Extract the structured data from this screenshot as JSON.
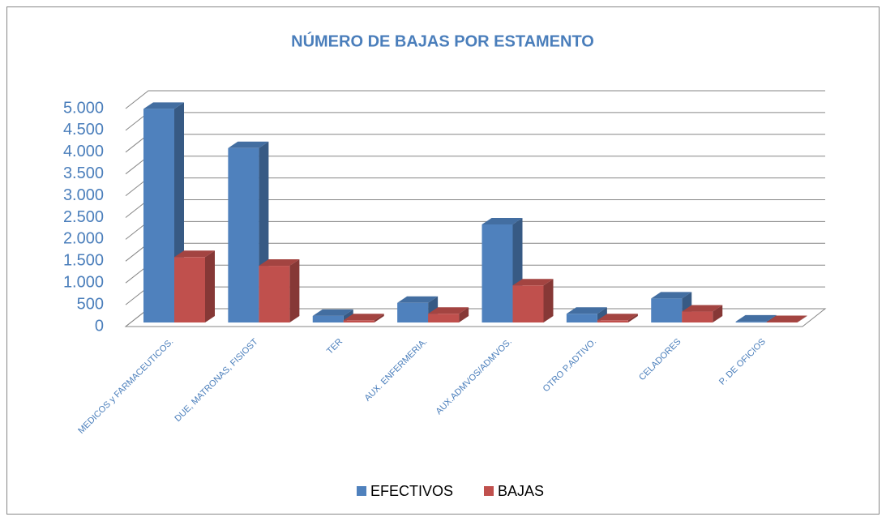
{
  "chart_data": {
    "type": "bar3d",
    "title": "NÚMERO DE BAJAS POR ESTAMENTO",
    "categories": [
      "MEDICOS y FARMACEUTICOS.",
      "DUE, MATRONAS, FISIOST",
      "TER",
      "AUX. ENFERMERIA.",
      "AUX.ADMVOS/ADMVOS.",
      "OTRO P.ADTIVO.",
      "CELADORES",
      "P. DE OFICIOS"
    ],
    "series": [
      {
        "name": "EFECTIVOS",
        "color": "#4f81bd",
        "values": [
          4900,
          4000,
          150,
          450,
          2250,
          200,
          550,
          20
        ]
      },
      {
        "name": "BAJAS",
        "color": "#c0504d",
        "values": [
          1500,
          1300,
          50,
          200,
          850,
          50,
          250,
          10
        ]
      }
    ],
    "ylim": [
      0,
      5000
    ],
    "yticks": [
      0,
      500,
      {
        "value": 1000,
        "label": "1.000"
      },
      {
        "value": 1500,
        "label": "1.500"
      },
      {
        "value": 2000,
        "label": "2.000"
      },
      {
        "value": 2500,
        "label": "2.500"
      },
      {
        "value": 3000,
        "label": "3.000"
      },
      {
        "value": 3500,
        "label": "3.500"
      },
      {
        "value": 4000,
        "label": "4.000"
      },
      {
        "value": 4500,
        "label": "4.500"
      },
      {
        "value": 5000,
        "label": "5.000"
      }
    ],
    "grid": true
  }
}
